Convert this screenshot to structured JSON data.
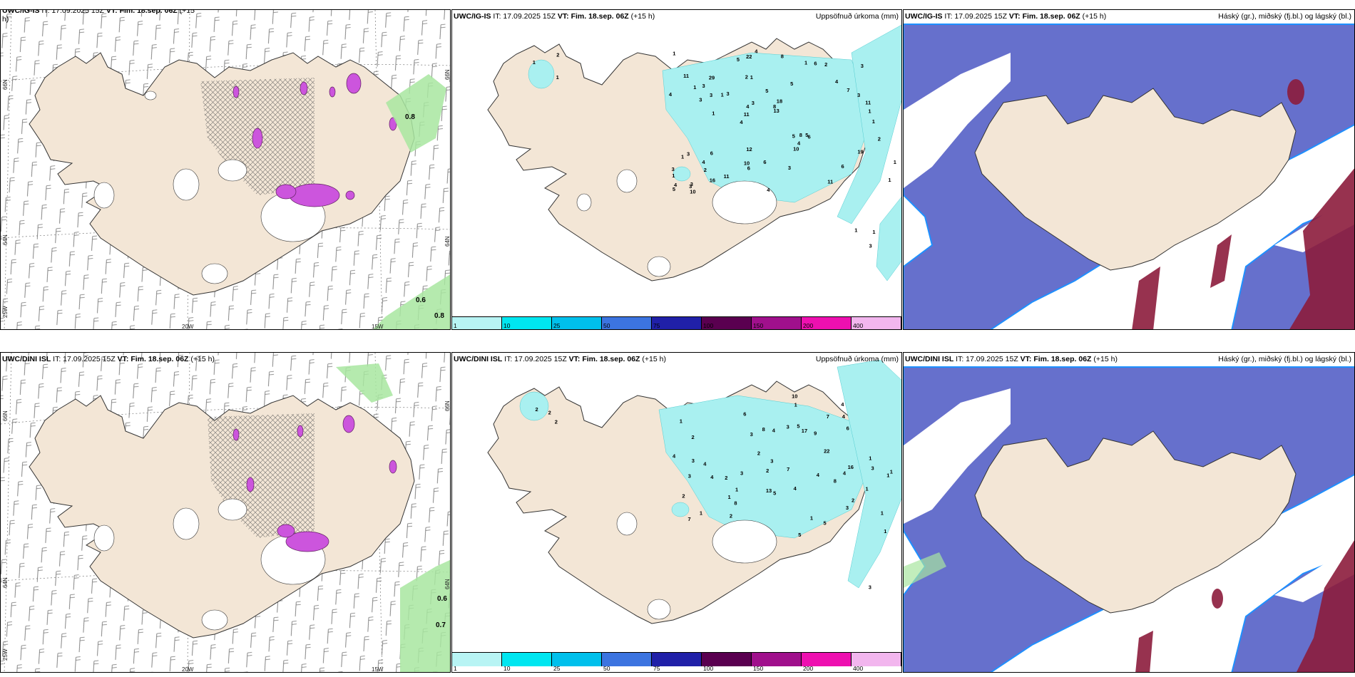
{
  "colors": {
    "land": "#f3e6d6",
    "coast": "#333333",
    "precip_light": "#a9f0f0",
    "precip_med": "#5de3e8",
    "cloud_high": "#1e90ff",
    "cloud_mid": "#6670cc",
    "cloud_low": "#8c1c3c",
    "wind_barb": "#6e6e6e",
    "icing": "#cc55dd"
  },
  "panels": [
    {
      "id": "igis-wind",
      "model": "UWC/IG-IS",
      "it_label": "IT: 17.09.2025 15Z",
      "vt_label": "VT: Fim. 18.sep. 06Z",
      "lead": "(+15",
      "lead2": "h)",
      "grid": {
        "lat_n": "66N",
        "lat_s": "64N",
        "lon_w": "25W",
        "lon_m": "20W",
        "lon_e": "15W",
        "lat_n_r": "66N",
        "lat_s_r": "64N"
      },
      "values": [
        "0.8",
        "0.6",
        "0.8"
      ]
    },
    {
      "id": "igis-precip",
      "model": "UWC/IG-IS",
      "it_label": "IT: 17.09.2025 15Z",
      "vt_label": "VT: Fim. 18.sep. 06Z",
      "lead": "(+15 h)",
      "right_title": "Uppsöfnuð úrkoma (mm)",
      "numbers": [
        "1",
        "1",
        "2",
        "4",
        "5",
        "3",
        "2",
        "5",
        "3",
        "3",
        "1",
        "2",
        "1",
        "18",
        "6",
        "11",
        "22",
        "11",
        "5",
        "7",
        "11",
        "10",
        "4",
        "29",
        "1",
        "6",
        "11",
        "6",
        "5",
        "4",
        "1",
        "3",
        "10",
        "16",
        "3",
        "8",
        "4",
        "6",
        "13",
        "1",
        "4",
        "3",
        "4",
        "3",
        "4",
        "10",
        "5",
        "6",
        "2",
        "4",
        "1",
        "4",
        "3",
        "6",
        "3",
        "8",
        "5",
        "3",
        "19",
        "12",
        "11",
        "8",
        "3",
        "3",
        "1",
        "1",
        "1",
        "1",
        "1",
        "1",
        "1",
        "2",
        "1",
        "3"
      ]
    },
    {
      "id": "igis-cloud",
      "model": "UWC/IG-IS",
      "it_label": "IT: 17.09.2025 15Z",
      "vt_label": "VT: Fim. 18.sep. 06Z",
      "lead": "(+15 h)",
      "right_title": "Háský (gr.), miðský (fj.bl.) og lágský (bl.)"
    },
    {
      "id": "dini-wind",
      "model": "UWC/DINI ISL",
      "it_label": "IT: 17.09.2025 15Z",
      "vt_label": "VT: Fim. 18.sep. 06Z",
      "lead": "(+15 h)",
      "grid": {
        "lat_n": "66N",
        "lat_s": "64N",
        "lon_w": "25W",
        "lon_m": "20W",
        "lon_e": "15W",
        "lat_n_r": "66N",
        "lat_s_r": "64N"
      },
      "values": [
        "0.6",
        "0.7"
      ]
    },
    {
      "id": "dini-precip",
      "model": "UWC/DINI ISL",
      "it_label": "IT: 17.09.2025 15Z",
      "vt_label": "VT: Fim. 18.sep. 06Z",
      "lead": "(+15 h)",
      "right_title": "Uppsöfnuð úrkoma (mm)",
      "numbers": [
        "2",
        "2",
        "2",
        "1",
        "3",
        "2",
        "1",
        "2",
        "9",
        "8",
        "17",
        "5",
        "8",
        "6",
        "7",
        "2",
        "4",
        "3",
        "4",
        "7",
        "4",
        "4",
        "22",
        "1",
        "16",
        "3",
        "4",
        "2",
        "2",
        "4",
        "4",
        "3",
        "1",
        "5",
        "3",
        "8",
        "4",
        "1",
        "7",
        "5",
        "1",
        "5",
        "2",
        "10",
        "3",
        "4",
        "6",
        "1",
        "3",
        "13",
        "1",
        "1",
        "1",
        "1",
        "1",
        "2",
        "3",
        "3"
      ]
    },
    {
      "id": "dini-cloud",
      "model": "UWC/DINI ISL",
      "it_label": "IT: 17.09.2025 15Z",
      "vt_label": "VT: Fim. 18.sep. 06Z",
      "lead": "(+15 h)",
      "right_title": "Háský (gr.), miðský (fj.bl.) og lágský (bl.)"
    }
  ],
  "colorbar": {
    "ticks": [
      "1",
      "10",
      "25",
      "50",
      "75",
      "100",
      "150",
      "200",
      "400"
    ],
    "colors": [
      "#b8f4f4",
      "#00e6f0",
      "#00c0ec",
      "#3c74e0",
      "#2020a8",
      "#5a0050",
      "#a0108c",
      "#ee10b0",
      "#f2b6ee"
    ]
  }
}
